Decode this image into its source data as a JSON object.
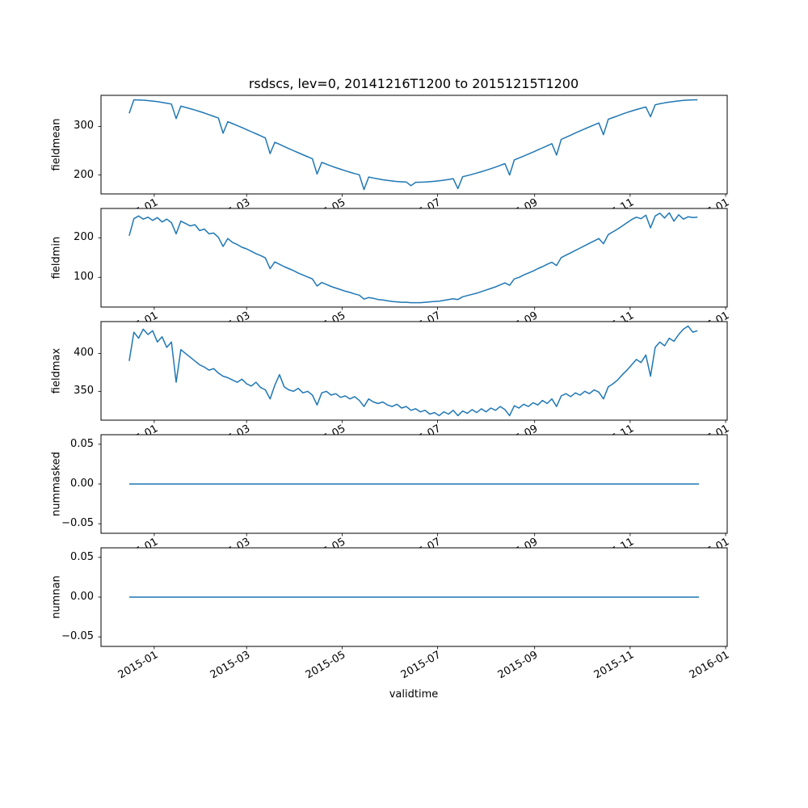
{
  "figure": {
    "title": "rsdscs, lev=0, 20141216T1200 to 20151215T1200",
    "xlabel": "validtime",
    "line_color": "#1f77b4",
    "xlim": [
      -18,
      382
    ],
    "x_tick_days": [
      16,
      75,
      136,
      197,
      259,
      320,
      381
    ],
    "x_tick_labels": [
      "2015-01",
      "2015-03",
      "2015-05",
      "2015-07",
      "2015-09",
      "2015-11",
      "2016-01"
    ]
  },
  "chart_data": [
    {
      "type": "line",
      "ylabel": "fieldmean",
      "ylim": [
        161,
        364
      ],
      "yticks": [
        200,
        300
      ],
      "ytick_labels": [
        "200",
        "300"
      ],
      "x_start": 0,
      "x_step": 3,
      "values": [
        327,
        354.9,
        354.5,
        354,
        353.2,
        352.2,
        351,
        349.5,
        347.9,
        346,
        316,
        341.7,
        339.2,
        336.6,
        333.7,
        330.8,
        327.6,
        324.3,
        320.8,
        317.3,
        286,
        309.7,
        305.7,
        301.8,
        297.7,
        293.5,
        289.2,
        284.9,
        280.6,
        276.2,
        244,
        267.4,
        263.1,
        258.7,
        254.4,
        250.1,
        245.8,
        241.7,
        237.6,
        233.6,
        202,
        225.9,
        222.2,
        218.5,
        215.1,
        211.9,
        208.8,
        205.8,
        203,
        200.4,
        170,
        195.7,
        193.7,
        191.9,
        190.2,
        188.8,
        187.6,
        186.7,
        185.9,
        185.4,
        178,
        185,
        185.2,
        185.5,
        186.1,
        187,
        188,
        189.3,
        190.8,
        192.5,
        172,
        196.5,
        198.8,
        201.2,
        203.9,
        206.7,
        209.7,
        212.9,
        216.3,
        219.8,
        223.4,
        200,
        231,
        234.9,
        238.9,
        243,
        247.2,
        251.5,
        255.8,
        260.1,
        264.5,
        241,
        273.3,
        277.7,
        282,
        286.4,
        290.6,
        294.9,
        299,
        303.1,
        307.1,
        283,
        314.7,
        318.3,
        321.8,
        325.4,
        328.7,
        331.8,
        334.7,
        337.4,
        340,
        320,
        344.6,
        346.7,
        348.5,
        350,
        351.4,
        352.6,
        353.5,
        354.2,
        354.7,
        354.9
      ]
    },
    {
      "type": "line",
      "ylabel": "fieldmin",
      "ylim": [
        25,
        274
      ],
      "yticks": [
        100,
        200
      ],
      "ytick_labels": [
        "100",
        "200"
      ],
      "x_start": 0,
      "x_step": 3,
      "values": [
        205,
        248,
        255,
        247,
        252,
        244,
        251,
        240,
        247,
        238,
        210,
        242,
        236,
        230,
        233,
        218,
        222,
        210,
        212,
        201,
        178,
        198,
        188,
        183,
        176,
        172,
        166,
        160,
        155,
        149,
        122,
        139,
        133,
        127,
        122,
        117,
        111,
        106,
        101,
        96,
        78,
        87,
        82,
        77,
        73,
        69,
        65,
        62,
        58,
        55,
        45,
        49,
        47,
        44,
        43,
        41,
        39,
        38,
        37,
        37,
        36,
        36,
        36,
        37,
        38,
        39,
        40,
        42,
        44,
        46,
        44,
        51,
        54,
        57,
        60,
        64,
        68,
        72,
        76,
        81,
        86,
        80,
        96,
        100,
        106,
        111,
        116,
        122,
        127,
        133,
        138,
        130,
        150,
        156,
        162,
        168,
        174,
        180,
        186,
        192,
        198,
        185,
        208,
        215,
        222,
        230,
        238,
        246,
        252,
        248,
        257,
        225,
        255,
        262,
        250,
        263,
        242,
        258,
        247,
        253,
        251,
        252
      ]
    },
    {
      "type": "line",
      "ylabel": "fieldmax",
      "ylim": [
        312,
        442
      ],
      "yticks": [
        350,
        400
      ],
      "ytick_labels": [
        "350",
        "400"
      ],
      "x_start": 0,
      "x_step": 3,
      "values": [
        390,
        428,
        420,
        432,
        425,
        430,
        415,
        422,
        408,
        415,
        362,
        405,
        400,
        395,
        390,
        385,
        382,
        378,
        380,
        374,
        370,
        368,
        365,
        362,
        366,
        360,
        357,
        362,
        355,
        352,
        340,
        358,
        372,
        356,
        352,
        350,
        354,
        348,
        350,
        345,
        332,
        348,
        350,
        345,
        347,
        342,
        344,
        340,
        343,
        338,
        330,
        340,
        336,
        334,
        336,
        332,
        330,
        333,
        328,
        330,
        325,
        327,
        323,
        325,
        320,
        322,
        318,
        323,
        320,
        325,
        318,
        324,
        321,
        326,
        322,
        327,
        323,
        328,
        325,
        330,
        326,
        318,
        331,
        328,
        333,
        330,
        335,
        332,
        338,
        334,
        340,
        330,
        344,
        347,
        343,
        348,
        345,
        350,
        347,
        352,
        349,
        340,
        356,
        360,
        365,
        372,
        378,
        385,
        392,
        388,
        398,
        370,
        408,
        415,
        410,
        420,
        416,
        425,
        432,
        436,
        428,
        430
      ]
    },
    {
      "type": "line",
      "ylabel": "nummasked",
      "ylim": [
        -0.062,
        0.062
      ],
      "yticks": [
        0.05,
        0.0,
        -0.05
      ],
      "ytick_labels": [
        "0.05",
        "0.00",
        "−0.05"
      ],
      "x": [
        0,
        364
      ],
      "values": [
        0.0,
        0.0
      ]
    },
    {
      "type": "line",
      "ylabel": "numnan",
      "ylim": [
        -0.062,
        0.062
      ],
      "yticks": [
        0.05,
        0.0,
        -0.05
      ],
      "ytick_labels": [
        "0.05",
        "0.00",
        "−0.05"
      ],
      "x": [
        0,
        364
      ],
      "values": [
        0.0,
        0.0
      ]
    }
  ]
}
